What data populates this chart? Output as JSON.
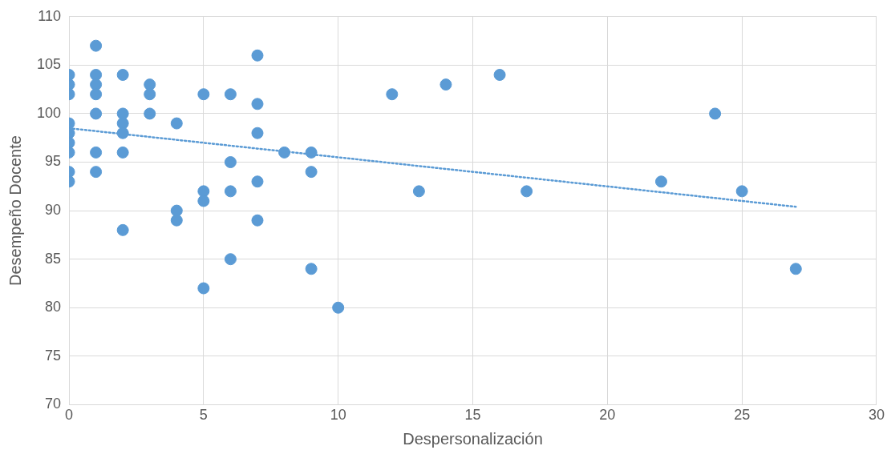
{
  "chart_data": {
    "type": "scatter",
    "xlabel": "Despersonalización",
    "ylabel": "Desempeño Docente",
    "xlim": [
      0,
      30
    ],
    "xticks": [
      0,
      5,
      10,
      15,
      20,
      25,
      30
    ],
    "ylim": [
      70,
      110
    ],
    "yticks": [
      70,
      75,
      80,
      85,
      90,
      95,
      100,
      105,
      110
    ],
    "grid": true,
    "series": [
      {
        "marker": "circle",
        "color": "#5b9bd5",
        "x": [
          0,
          0,
          0,
          0,
          0,
          0,
          0,
          0,
          0,
          1,
          1,
          1,
          1,
          1,
          1,
          1,
          2,
          2,
          2,
          2,
          2,
          2,
          3,
          3,
          3,
          4,
          4,
          4,
          5,
          5,
          5,
          5,
          6,
          6,
          6,
          6,
          7,
          7,
          7,
          7,
          7,
          8,
          9,
          9,
          9,
          10,
          12,
          13,
          14,
          16,
          17,
          22,
          24,
          25,
          27
        ],
        "values": [
          104,
          103,
          102,
          99,
          98,
          97,
          96,
          94,
          93,
          107,
          104,
          103,
          102,
          100,
          96,
          94,
          104,
          100,
          99,
          98,
          96,
          88,
          103,
          102,
          100,
          99,
          90,
          89,
          102,
          92,
          91,
          82,
          102,
          95,
          92,
          85,
          106,
          101,
          98,
          93,
          89,
          96,
          96,
          94,
          84,
          80,
          102,
          92,
          103,
          104,
          92,
          93,
          100,
          92,
          84
        ]
      },
      {
        "type": "line",
        "color": "#5b9bd5",
        "line_style": "dotted",
        "x": [
          0,
          27
        ],
        "values": [
          98.5,
          90.4
        ]
      }
    ]
  }
}
